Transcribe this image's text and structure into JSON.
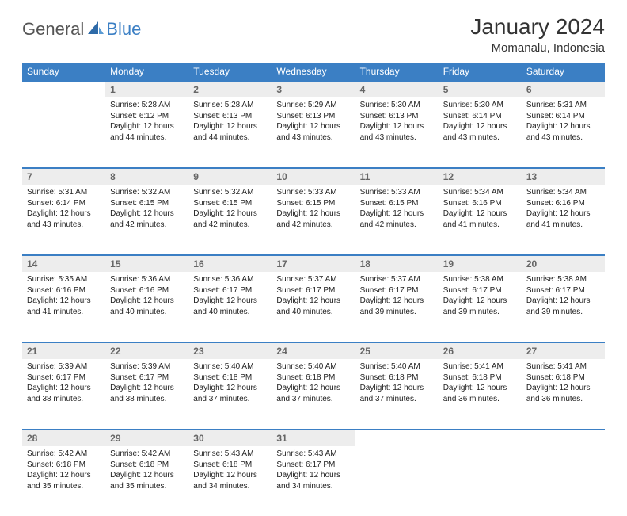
{
  "logo": {
    "part1": "General",
    "part2": "Blue"
  },
  "title": "January 2024",
  "subtitle": "Momanalu, Indonesia",
  "colors": {
    "header_bg": "#3b7fc4",
    "header_text": "#ffffff",
    "daynum_bg": "#ededed",
    "daynum_border": "#3b7fc4",
    "daynum_text": "#666666",
    "body_text": "#222222",
    "page_bg": "#ffffff"
  },
  "weekdays": [
    "Sunday",
    "Monday",
    "Tuesday",
    "Wednesday",
    "Thursday",
    "Friday",
    "Saturday"
  ],
  "weeks": [
    [
      null,
      {
        "n": "1",
        "sr": "Sunrise: 5:28 AM",
        "ss": "Sunset: 6:12 PM",
        "dl": "Daylight: 12 hours and 44 minutes."
      },
      {
        "n": "2",
        "sr": "Sunrise: 5:28 AM",
        "ss": "Sunset: 6:13 PM",
        "dl": "Daylight: 12 hours and 44 minutes."
      },
      {
        "n": "3",
        "sr": "Sunrise: 5:29 AM",
        "ss": "Sunset: 6:13 PM",
        "dl": "Daylight: 12 hours and 43 minutes."
      },
      {
        "n": "4",
        "sr": "Sunrise: 5:30 AM",
        "ss": "Sunset: 6:13 PM",
        "dl": "Daylight: 12 hours and 43 minutes."
      },
      {
        "n": "5",
        "sr": "Sunrise: 5:30 AM",
        "ss": "Sunset: 6:14 PM",
        "dl": "Daylight: 12 hours and 43 minutes."
      },
      {
        "n": "6",
        "sr": "Sunrise: 5:31 AM",
        "ss": "Sunset: 6:14 PM",
        "dl": "Daylight: 12 hours and 43 minutes."
      }
    ],
    [
      {
        "n": "7",
        "sr": "Sunrise: 5:31 AM",
        "ss": "Sunset: 6:14 PM",
        "dl": "Daylight: 12 hours and 43 minutes."
      },
      {
        "n": "8",
        "sr": "Sunrise: 5:32 AM",
        "ss": "Sunset: 6:15 PM",
        "dl": "Daylight: 12 hours and 42 minutes."
      },
      {
        "n": "9",
        "sr": "Sunrise: 5:32 AM",
        "ss": "Sunset: 6:15 PM",
        "dl": "Daylight: 12 hours and 42 minutes."
      },
      {
        "n": "10",
        "sr": "Sunrise: 5:33 AM",
        "ss": "Sunset: 6:15 PM",
        "dl": "Daylight: 12 hours and 42 minutes."
      },
      {
        "n": "11",
        "sr": "Sunrise: 5:33 AM",
        "ss": "Sunset: 6:15 PM",
        "dl": "Daylight: 12 hours and 42 minutes."
      },
      {
        "n": "12",
        "sr": "Sunrise: 5:34 AM",
        "ss": "Sunset: 6:16 PM",
        "dl": "Daylight: 12 hours and 41 minutes."
      },
      {
        "n": "13",
        "sr": "Sunrise: 5:34 AM",
        "ss": "Sunset: 6:16 PM",
        "dl": "Daylight: 12 hours and 41 minutes."
      }
    ],
    [
      {
        "n": "14",
        "sr": "Sunrise: 5:35 AM",
        "ss": "Sunset: 6:16 PM",
        "dl": "Daylight: 12 hours and 41 minutes."
      },
      {
        "n": "15",
        "sr": "Sunrise: 5:36 AM",
        "ss": "Sunset: 6:16 PM",
        "dl": "Daylight: 12 hours and 40 minutes."
      },
      {
        "n": "16",
        "sr": "Sunrise: 5:36 AM",
        "ss": "Sunset: 6:17 PM",
        "dl": "Daylight: 12 hours and 40 minutes."
      },
      {
        "n": "17",
        "sr": "Sunrise: 5:37 AM",
        "ss": "Sunset: 6:17 PM",
        "dl": "Daylight: 12 hours and 40 minutes."
      },
      {
        "n": "18",
        "sr": "Sunrise: 5:37 AM",
        "ss": "Sunset: 6:17 PM",
        "dl": "Daylight: 12 hours and 39 minutes."
      },
      {
        "n": "19",
        "sr": "Sunrise: 5:38 AM",
        "ss": "Sunset: 6:17 PM",
        "dl": "Daylight: 12 hours and 39 minutes."
      },
      {
        "n": "20",
        "sr": "Sunrise: 5:38 AM",
        "ss": "Sunset: 6:17 PM",
        "dl": "Daylight: 12 hours and 39 minutes."
      }
    ],
    [
      {
        "n": "21",
        "sr": "Sunrise: 5:39 AM",
        "ss": "Sunset: 6:17 PM",
        "dl": "Daylight: 12 hours and 38 minutes."
      },
      {
        "n": "22",
        "sr": "Sunrise: 5:39 AM",
        "ss": "Sunset: 6:17 PM",
        "dl": "Daylight: 12 hours and 38 minutes."
      },
      {
        "n": "23",
        "sr": "Sunrise: 5:40 AM",
        "ss": "Sunset: 6:18 PM",
        "dl": "Daylight: 12 hours and 37 minutes."
      },
      {
        "n": "24",
        "sr": "Sunrise: 5:40 AM",
        "ss": "Sunset: 6:18 PM",
        "dl": "Daylight: 12 hours and 37 minutes."
      },
      {
        "n": "25",
        "sr": "Sunrise: 5:40 AM",
        "ss": "Sunset: 6:18 PM",
        "dl": "Daylight: 12 hours and 37 minutes."
      },
      {
        "n": "26",
        "sr": "Sunrise: 5:41 AM",
        "ss": "Sunset: 6:18 PM",
        "dl": "Daylight: 12 hours and 36 minutes."
      },
      {
        "n": "27",
        "sr": "Sunrise: 5:41 AM",
        "ss": "Sunset: 6:18 PM",
        "dl": "Daylight: 12 hours and 36 minutes."
      }
    ],
    [
      {
        "n": "28",
        "sr": "Sunrise: 5:42 AM",
        "ss": "Sunset: 6:18 PM",
        "dl": "Daylight: 12 hours and 35 minutes."
      },
      {
        "n": "29",
        "sr": "Sunrise: 5:42 AM",
        "ss": "Sunset: 6:18 PM",
        "dl": "Daylight: 12 hours and 35 minutes."
      },
      {
        "n": "30",
        "sr": "Sunrise: 5:43 AM",
        "ss": "Sunset: 6:18 PM",
        "dl": "Daylight: 12 hours and 34 minutes."
      },
      {
        "n": "31",
        "sr": "Sunrise: 5:43 AM",
        "ss": "Sunset: 6:17 PM",
        "dl": "Daylight: 12 hours and 34 minutes."
      },
      null,
      null,
      null
    ]
  ]
}
